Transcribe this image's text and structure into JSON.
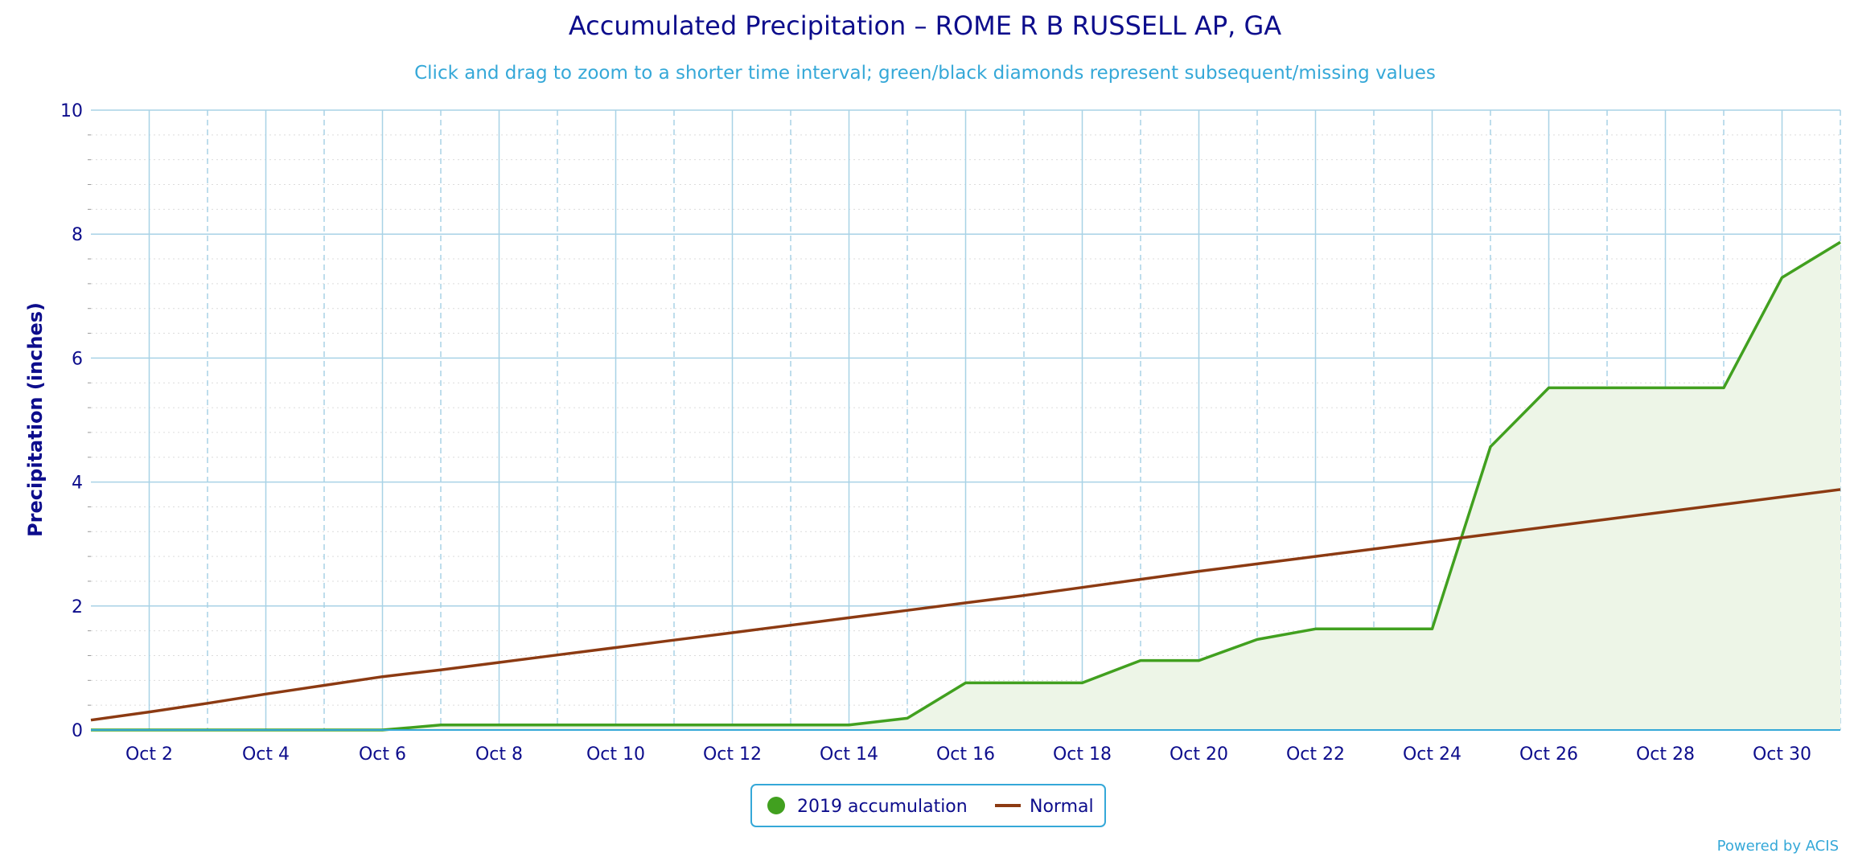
{
  "chart_data": {
    "type": "area",
    "title": "Accumulated Precipitation – ROME R B RUSSELL AP, GA",
    "subtitle": "Click and drag to zoom to a shorter time interval; green/black diamonds represent subsequent/missing values",
    "ylabel": "Precipitation (inches)",
    "xlabel": "",
    "ylim": [
      0,
      10
    ],
    "xlim": [
      1,
      31
    ],
    "y_ticks": [
      0,
      2,
      4,
      6,
      8,
      10
    ],
    "y_tick_labels": [
      "0",
      "2",
      "4",
      "6",
      "8",
      "10"
    ],
    "x_ticks": [
      2,
      4,
      6,
      8,
      10,
      12,
      14,
      16,
      18,
      20,
      22,
      24,
      26,
      28,
      30
    ],
    "x_tick_labels": [
      "Oct 2",
      "Oct 4",
      "Oct 6",
      "Oct 8",
      "Oct 10",
      "Oct 12",
      "Oct 14",
      "Oct 16",
      "Oct 18",
      "Oct 20",
      "Oct 22",
      "Oct 24",
      "Oct 26",
      "Oct 28",
      "Oct 30"
    ],
    "grid": true,
    "legend_position": "bottom-center",
    "series": [
      {
        "name": "2019 accumulation",
        "kind": "area",
        "color": "#41a01f",
        "fill": "#edf5e7",
        "x": [
          1,
          2,
          3,
          4,
          5,
          6,
          7,
          8,
          9,
          10,
          11,
          12,
          13,
          14,
          15,
          16,
          17,
          18,
          19,
          20,
          21,
          22,
          23,
          24,
          25,
          26,
          27,
          28,
          29,
          30,
          31
        ],
        "values": [
          0.0,
          0.0,
          0.0,
          0.0,
          0.0,
          0.0,
          0.08,
          0.08,
          0.08,
          0.08,
          0.08,
          0.08,
          0.08,
          0.08,
          0.19,
          0.76,
          0.76,
          0.76,
          1.12,
          1.12,
          1.46,
          1.63,
          1.63,
          1.63,
          4.57,
          5.52,
          5.52,
          5.52,
          5.52,
          7.3,
          7.87
        ]
      },
      {
        "name": "Normal",
        "kind": "line",
        "color": "#8c3a12",
        "x": [
          1,
          2,
          3,
          4,
          5,
          6,
          7,
          8,
          9,
          10,
          11,
          12,
          13,
          14,
          15,
          16,
          17,
          18,
          19,
          20,
          21,
          22,
          23,
          24,
          25,
          26,
          27,
          28,
          29,
          30,
          31
        ],
        "values": [
          0.16,
          0.29,
          0.43,
          0.58,
          0.72,
          0.86,
          0.97,
          1.09,
          1.21,
          1.33,
          1.45,
          1.57,
          1.69,
          1.81,
          1.93,
          2.05,
          2.17,
          2.3,
          2.43,
          2.56,
          2.68,
          2.8,
          2.92,
          3.04,
          3.16,
          3.28,
          3.4,
          3.52,
          3.64,
          3.76,
          3.88
        ]
      }
    ],
    "credit": "Powered by ACIS"
  },
  "colors": {
    "title": "#0d0d8c",
    "subtitle": "#35a8d8",
    "grid_major": "#a8d2e6",
    "grid_minor": "#dcdcdc",
    "axis": "#35a8d8"
  }
}
